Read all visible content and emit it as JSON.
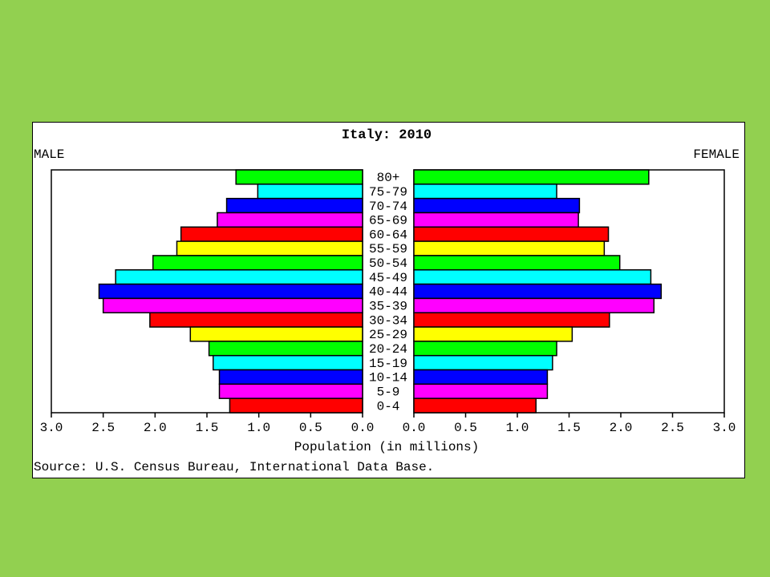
{
  "chart_data": {
    "type": "pyramid",
    "title": "Italy: 2010",
    "categories": [
      "80+",
      "75-79",
      "70-74",
      "65-69",
      "60-64",
      "55-59",
      "50-54",
      "45-49",
      "40-44",
      "35-39",
      "30-34",
      "25-29",
      "20-24",
      "15-19",
      "10-14",
      "5-9",
      "0-4"
    ],
    "colors": [
      "#00ff00",
      "#00ffff",
      "#0000ff",
      "#ff00ff",
      "#ff0000",
      "#ffff00",
      "#00ff00",
      "#00ffff",
      "#0000ff",
      "#ff00ff",
      "#ff0000",
      "#ffff00",
      "#00ff00",
      "#00ffff",
      "#0000ff",
      "#ff00ff",
      "#ff0000"
    ],
    "series": [
      {
        "name": "MALE",
        "values": [
          1.22,
          1.01,
          1.31,
          1.4,
          1.75,
          1.79,
          2.02,
          2.38,
          2.54,
          2.5,
          2.05,
          1.66,
          1.48,
          1.44,
          1.38,
          1.38,
          1.28
        ]
      },
      {
        "name": "FEMALE",
        "values": [
          2.27,
          1.38,
          1.6,
          1.59,
          1.88,
          1.84,
          1.99,
          2.29,
          2.39,
          2.32,
          1.89,
          1.53,
          1.38,
          1.34,
          1.29,
          1.29,
          1.18
        ]
      }
    ],
    "xlim": [
      0,
      3
    ],
    "xticks": [
      {
        "value": 0,
        "label": "0.0"
      },
      0.5,
      {
        "value": 1,
        "label": "1.0"
      },
      1.5,
      {
        "value": 2,
        "label": "2.0"
      },
      2.5,
      {
        "value": 3,
        "label": "3.0"
      }
    ],
    "xlabel": "Population (in millions)",
    "source": "Source: U.S. Census Bureau, International Data Base."
  }
}
